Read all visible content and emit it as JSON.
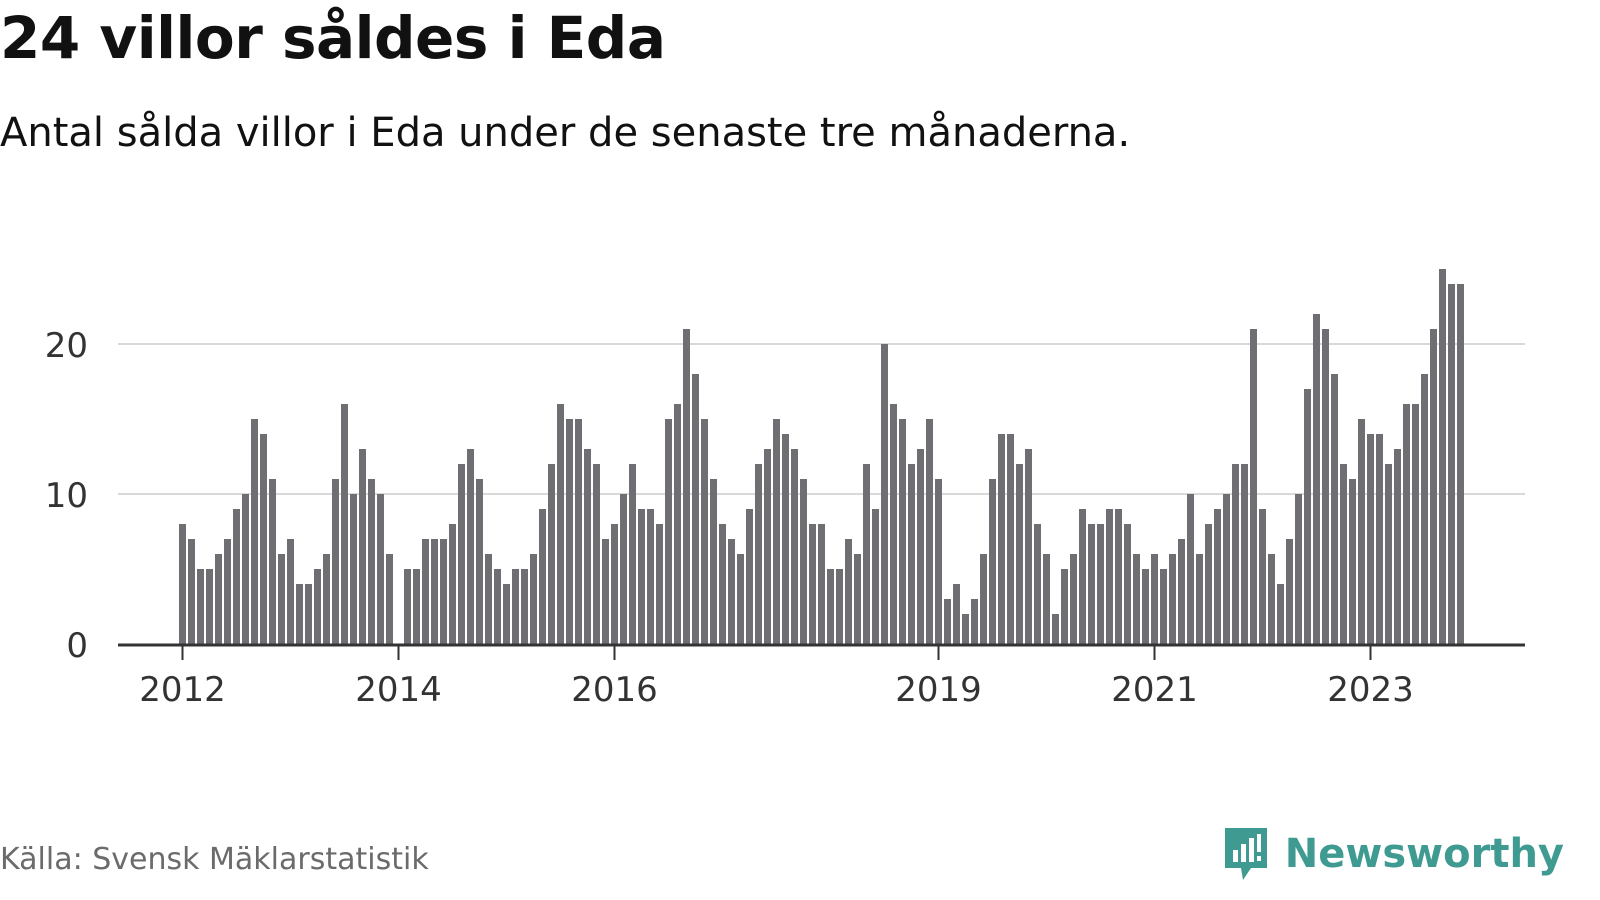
{
  "title": "24 villor såldes i Eda",
  "subtitle": "Antal sålda villor i Eda under de senaste tre månaderna.",
  "source": "Källa: Svensk Mäklarstatistik",
  "brand": {
    "name": "Newsworthy",
    "icon": "newsworthy-logo-icon",
    "color": "#3f9b91"
  },
  "colors": {
    "bar": "#6e6e73",
    "highlight": "#1ba89a",
    "grid": "#d9d9d9",
    "axis": "#333333"
  },
  "chart_data": {
    "type": "bar",
    "xlabel": "",
    "ylabel": "",
    "ylim": [
      0,
      25
    ],
    "yticks": [
      0,
      10,
      20
    ],
    "grid": true,
    "x_start": "2012-01",
    "x_ticks": [
      {
        "label": "2012",
        "index": 0
      },
      {
        "label": "2014",
        "index": 24
      },
      {
        "label": "2016",
        "index": 48
      },
      {
        "label": "2019",
        "index": 84
      },
      {
        "label": "2021",
        "index": 108
      },
      {
        "label": "2023",
        "index": 132
      }
    ],
    "values": [
      8,
      7,
      5,
      5,
      6,
      7,
      9,
      10,
      15,
      14,
      11,
      6,
      7,
      4,
      4,
      5,
      6,
      11,
      16,
      10,
      13,
      11,
      10,
      6,
      0,
      5,
      5,
      7,
      7,
      7,
      8,
      12,
      13,
      11,
      6,
      5,
      4,
      5,
      5,
      6,
      9,
      12,
      16,
      15,
      15,
      13,
      12,
      7,
      8,
      10,
      12,
      9,
      9,
      8,
      15,
      16,
      21,
      18,
      15,
      11,
      8,
      7,
      6,
      9,
      12,
      13,
      15,
      14,
      13,
      11,
      8,
      8,
      5,
      5,
      7,
      6,
      12,
      9,
      20,
      16,
      15,
      12,
      13,
      15,
      11,
      3,
      4,
      2,
      3,
      6,
      11,
      14,
      14,
      12,
      13,
      8,
      6,
      2,
      5,
      6,
      9,
      8,
      8,
      9,
      9,
      8,
      6,
      5,
      6,
      5,
      6,
      7,
      10,
      6,
      8,
      9,
      10,
      12,
      12,
      21,
      9,
      6,
      4,
      7,
      10,
      17,
      22,
      21,
      18,
      12,
      11,
      15,
      14,
      14,
      12,
      13,
      16,
      16,
      18,
      21,
      25,
      24,
      24
    ],
    "highlight_index": 143,
    "highlight_label": "24"
  }
}
